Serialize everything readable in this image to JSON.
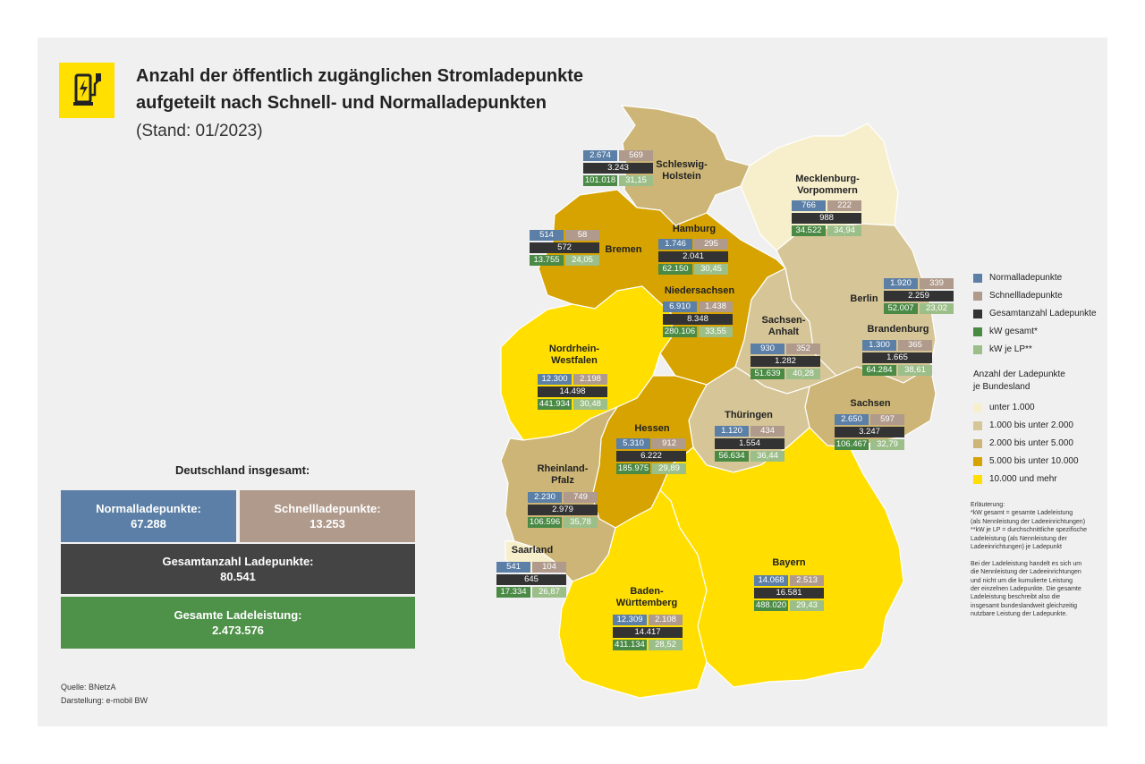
{
  "title": {
    "line1": "Anzahl der öffentlich zugänglichen Stromladepunkte",
    "line2": "aufgeteilt nach Schnell- und Normalladepunkten",
    "line3": "(Stand: 01/2023)"
  },
  "colors": {
    "normal": "#5b7fa6",
    "schnell": "#b09a8c",
    "gesamt": "#333333",
    "kw": "#4a8a45",
    "kwlp": "#9cbf8a",
    "cat1": "#f7efcc",
    "cat2": "#d6c597",
    "cat3": "#ccb576",
    "cat4": "#d6a300",
    "cat5": "#ffde00"
  },
  "icon": "ev-charging-station-icon",
  "states": [
    {
      "id": "sh",
      "name": "Schleswig-\nHolstein",
      "normal": "2.674",
      "schnell": "569",
      "gesamt": "3.243",
      "kw": "101.018",
      "kwlp": "31,15",
      "category": 3
    },
    {
      "id": "mv",
      "name": "Mecklenburg-\nVorpommern",
      "normal": "766",
      "schnell": "222",
      "gesamt": "988",
      "kw": "34.522",
      "kwlp": "34,94",
      "category": 1
    },
    {
      "id": "hh",
      "name": "Hamburg",
      "normal": "1.746",
      "schnell": "295",
      "gesamt": "2.041",
      "kw": "62.150",
      "kwlp": "30,45",
      "category": 3
    },
    {
      "id": "hb",
      "name": "Bremen",
      "normal": "514",
      "schnell": "58",
      "gesamt": "572",
      "kw": "13.755",
      "kwlp": "24,05",
      "category": 1
    },
    {
      "id": "ni",
      "name": "Niedersachsen",
      "normal": "6.910",
      "schnell": "1.438",
      "gesamt": "8.348",
      "kw": "280.106",
      "kwlp": "33,55",
      "category": 4
    },
    {
      "id": "be",
      "name": "Berlin",
      "normal": "1.920",
      "schnell": "339",
      "gesamt": "2.259",
      "kw": "52.007",
      "kwlp": "23,02",
      "category": 3
    },
    {
      "id": "bb",
      "name": "Brandenburg",
      "normal": "1.300",
      "schnell": "365",
      "gesamt": "1.665",
      "kw": "64.284",
      "kwlp": "38,61",
      "category": 2
    },
    {
      "id": "st",
      "name": "Sachsen-\nAnhalt",
      "normal": "930",
      "schnell": "352",
      "gesamt": "1.282",
      "kw": "51.639",
      "kwlp": "40,28",
      "category": 2
    },
    {
      "id": "nw",
      "name": "Nordrhein-\nWestfalen",
      "normal": "12.300",
      "schnell": "2.198",
      "gesamt": "14.498",
      "kw": "441.934",
      "kwlp": "30,48",
      "category": 5
    },
    {
      "id": "sn",
      "name": "Sachsen",
      "normal": "2.650",
      "schnell": "597",
      "gesamt": "3.247",
      "kw": "106.467",
      "kwlp": "32,79",
      "category": 3
    },
    {
      "id": "th",
      "name": "Thüringen",
      "normal": "1.120",
      "schnell": "434",
      "gesamt": "1.554",
      "kw": "56.634",
      "kwlp": "36,44",
      "category": 2
    },
    {
      "id": "he",
      "name": "Hessen",
      "normal": "5.310",
      "schnell": "912",
      "gesamt": "6.222",
      "kw": "185.975",
      "kwlp": "29,89",
      "category": 4
    },
    {
      "id": "rp",
      "name": "Rheinland-\nPfalz",
      "normal": "2.230",
      "schnell": "749",
      "gesamt": "2.979",
      "kw": "106.596",
      "kwlp": "35,78",
      "category": 3
    },
    {
      "id": "sl",
      "name": "Saarland",
      "normal": "541",
      "schnell": "104",
      "gesamt": "645",
      "kw": "17.334",
      "kwlp": "26,87",
      "category": 1
    },
    {
      "id": "by",
      "name": "Bayern",
      "normal": "14.068",
      "schnell": "2.513",
      "gesamt": "16.581",
      "kw": "488.020",
      "kwlp": "29,43",
      "category": 5
    },
    {
      "id": "bw",
      "name": "Baden-\nWürttemberg",
      "normal": "12.309",
      "schnell": "2.108",
      "gesamt": "14.417",
      "kw": "411.134",
      "kwlp": "28,52",
      "category": 5
    }
  ],
  "legend": {
    "series": [
      "Normalladepunkte",
      "Schnellladepunkte",
      "Gesamtanzahl Ladepunkte",
      "kW gesamt*",
      "kW je LP**"
    ],
    "heading": "Anzahl der Ladepunkte\nje Bundesland",
    "categories": [
      "unter 1.000",
      "1.000 bis unter 2.000",
      "2.000 bis unter 5.000",
      "5.000 bis unter 10.000",
      "10.000 und mehr"
    ]
  },
  "notes": "Erläuterung:\n*kW gesamt = gesamte Ladeleistung\n(als Nennleistung der Ladeeinrichtungen)\n**kW je LP = durchschnittliche spezifische\nLadeleistung (als Nennleistung der\nLadeeinrichtungen) je Ladepunkt\n\nBei der Ladeleistung handelt es sich um\ndie Nennleistung der Ladeeinrichtungen\nund nicht um die kumulierte Leistung\nder einzelnen Ladepunkte. Die gesamte\nLadeleistung beschreibt also die\ninsgesamt bundeslandweit gleichzeitig\nnutzbare Leistung der Ladepunkte.",
  "totals": {
    "heading": "Deutschland insgesamt:",
    "normal_label": "Normalladepunkte:",
    "normal_value": "67.288",
    "schnell_label": "Schnellladepunkte:",
    "schnell_value": "13.253",
    "gesamt_label": "Gesamtanzahl Ladepunkte:",
    "gesamt_value": "80.541",
    "leistung_label": "Gesamte Ladeleistung:",
    "leistung_value": "2.473.576"
  },
  "source": "Quelle: BNetzA",
  "credit": "Darstellung: e-mobil BW"
}
